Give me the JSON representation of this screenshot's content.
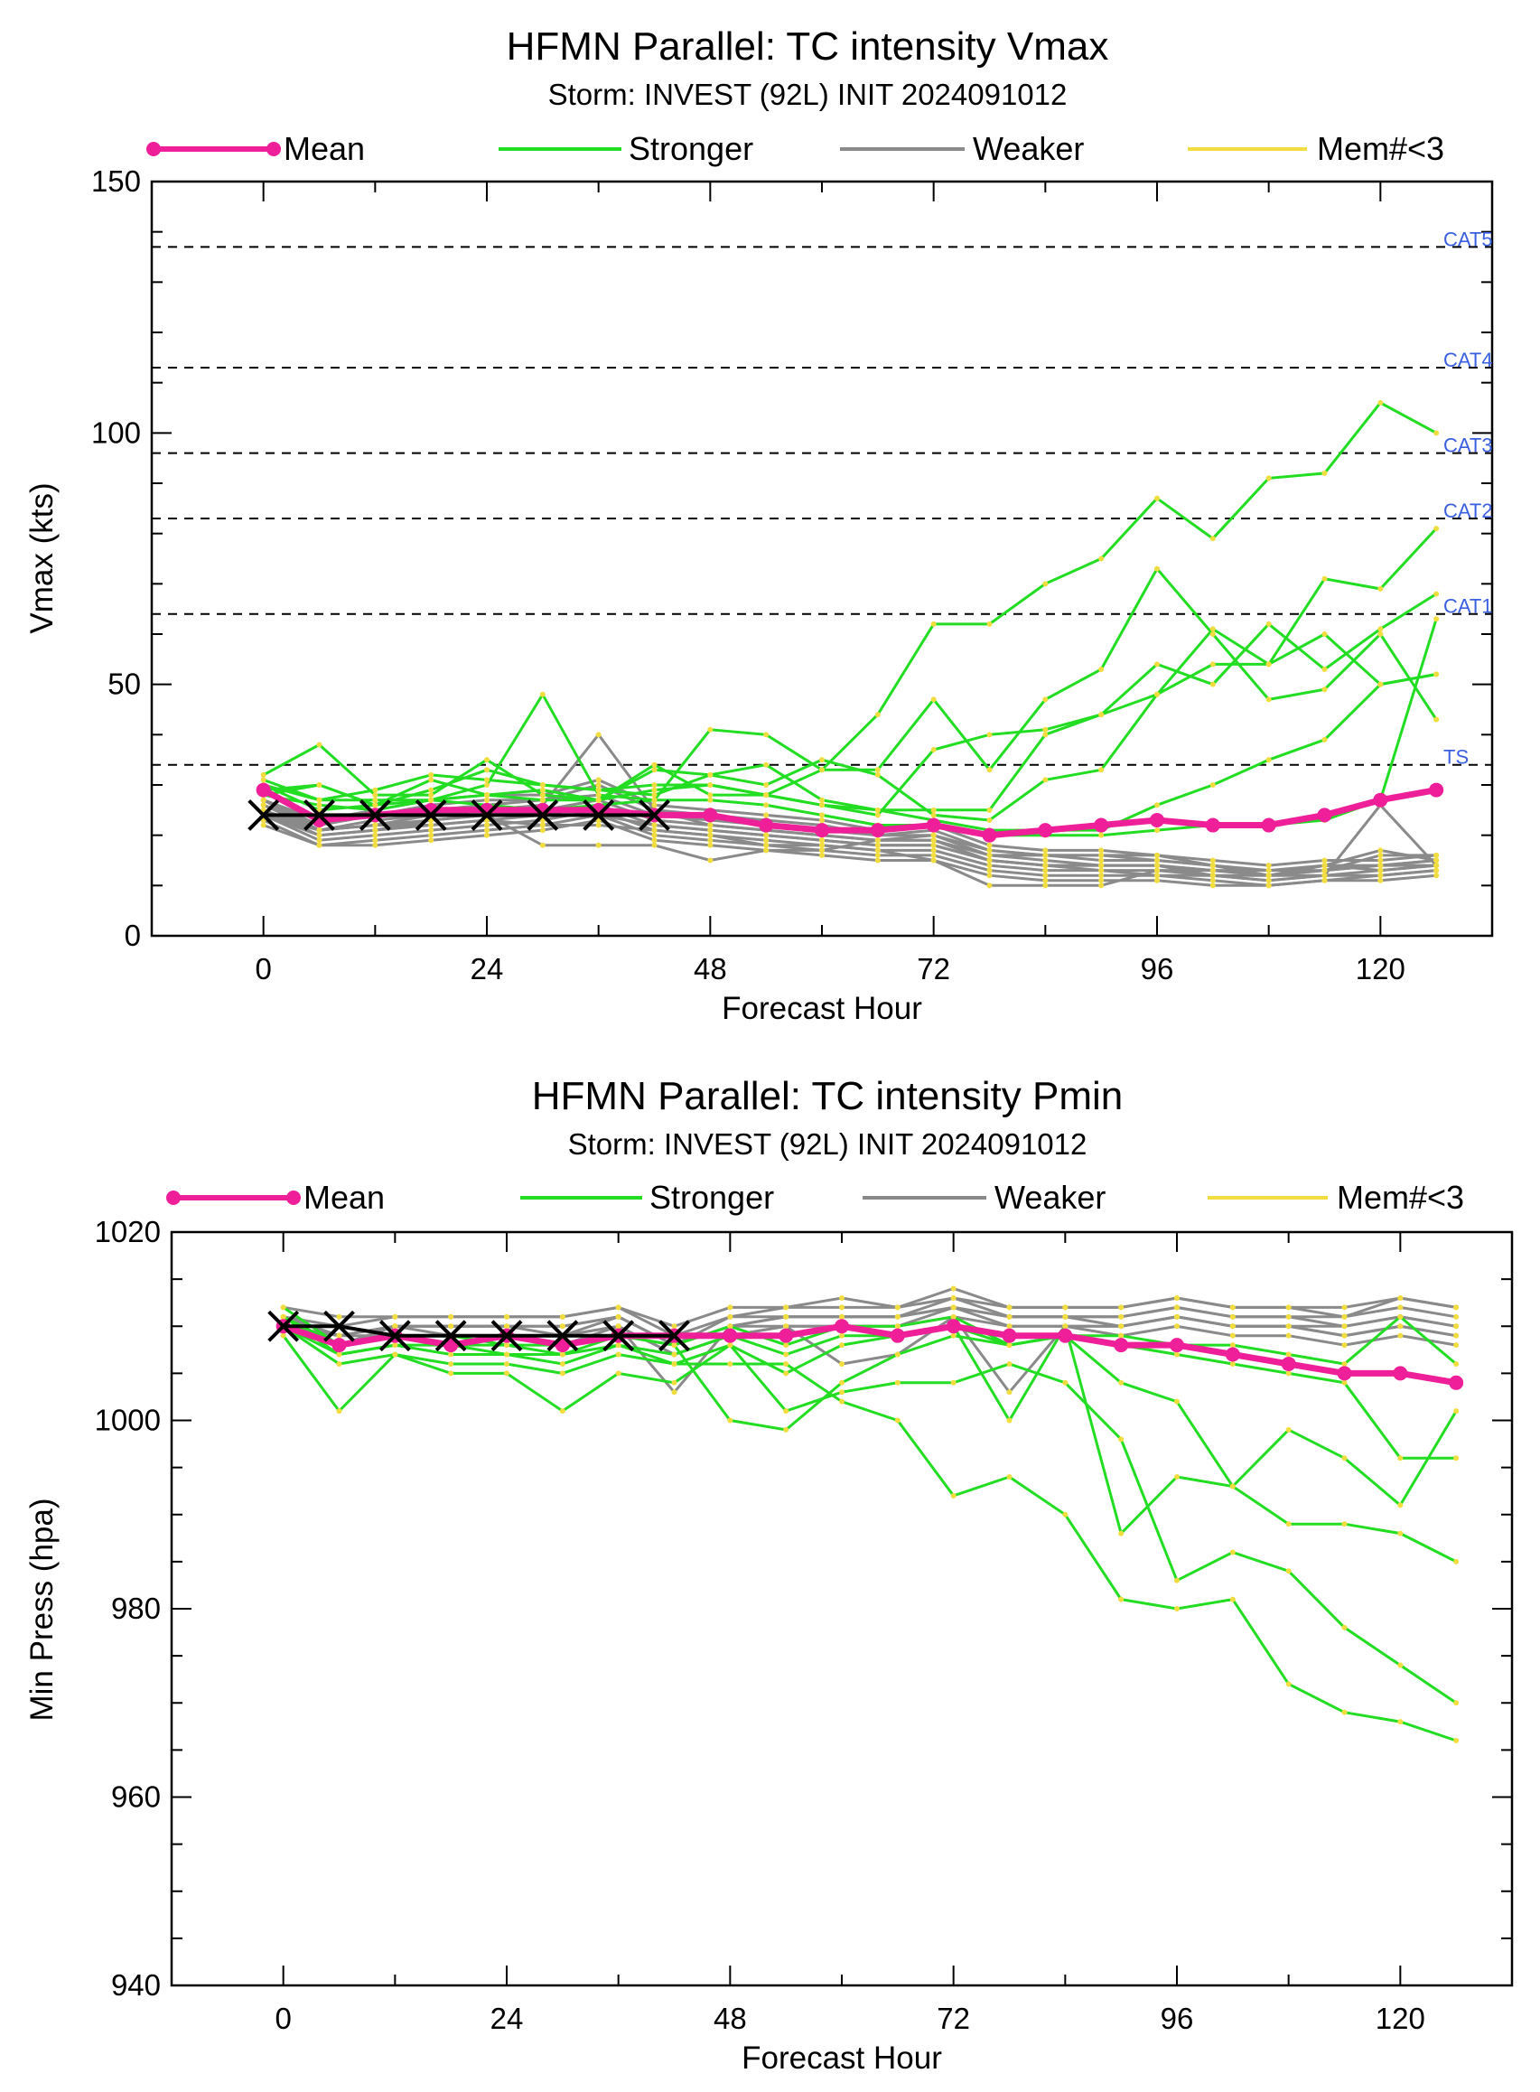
{
  "colors": {
    "mean": "#ee1f98",
    "stronger": "#22dd22",
    "weaker": "#8a8a8a",
    "few_members": "#f2dd40",
    "observed": "#000000",
    "category_label": "#3a5fe0"
  },
  "legend": {
    "mean": "Mean",
    "stronger": "Stronger",
    "weaker": "Weaker",
    "few_members": "Mem#<3"
  },
  "chart_data": [
    {
      "type": "line",
      "title": "HFMN Parallel: TC intensity Vmax",
      "subtitle": "Storm: INVEST (92L) INIT 2024091012",
      "xlabel": "Forecast Hour",
      "ylabel": "Vmax (kts)",
      "xlim": [
        -12,
        132
      ],
      "ylim": [
        0,
        150
      ],
      "xticks": [
        0,
        24,
        48,
        72,
        96,
        120
      ],
      "xtick_labels": [
        "0",
        "24",
        "48",
        "72",
        "96",
        "120"
      ],
      "yticks": [
        0,
        50,
        100,
        150
      ],
      "ytick_labels": [
        "0",
        "50",
        "100",
        "150"
      ],
      "ytick_minor_step": 10,
      "grid": false,
      "legend_position": "top",
      "thresholds": [
        {
          "value": 34,
          "label": "TS"
        },
        {
          "value": 64,
          "label": "CAT1"
        },
        {
          "value": 83,
          "label": "CAT2"
        },
        {
          "value": 96,
          "label": "CAT3"
        },
        {
          "value": 113,
          "label": "CAT4"
        },
        {
          "value": 137,
          "label": "CAT5"
        }
      ],
      "x": [
        0,
        6,
        12,
        18,
        24,
        30,
        36,
        42,
        48,
        54,
        60,
        66,
        72,
        78,
        84,
        90,
        96,
        102,
        108,
        114,
        120,
        126
      ],
      "mean": [
        29,
        23,
        24,
        25,
        25,
        25,
        25,
        24,
        24,
        22,
        21,
        21,
        22,
        20,
        21,
        22,
        23,
        22,
        22,
        24,
        27,
        29
      ],
      "observed": {
        "x": [
          0,
          6,
          12,
          18,
          24,
          30,
          36,
          42
        ],
        "y": [
          24,
          24,
          24,
          24,
          24,
          24,
          24,
          24
        ]
      },
      "stronger": [
        [
          30,
          27,
          29,
          32,
          31,
          30,
          29,
          30,
          30,
          28,
          33,
          44,
          62,
          62,
          70,
          75,
          87,
          79,
          91,
          92,
          106,
          100
        ],
        [
          31,
          27,
          27,
          27,
          30,
          48,
          28,
          27,
          41,
          40,
          33,
          33,
          47,
          33,
          47,
          53,
          73,
          60,
          47,
          49,
          60,
          43
        ],
        [
          32,
          38,
          28,
          28,
          35,
          28,
          27,
          33,
          32,
          34,
          27,
          25,
          25,
          25,
          40,
          44,
          54,
          50,
          62,
          53,
          61,
          68
        ],
        [
          30,
          25,
          26,
          27,
          28,
          29,
          27,
          34,
          28,
          28,
          26,
          24,
          37,
          40,
          41,
          44,
          48,
          61,
          54,
          71,
          69,
          81
        ],
        [
          28,
          30,
          26,
          29,
          33,
          30,
          29,
          28,
          32,
          30,
          35,
          32,
          24,
          23,
          31,
          33,
          48,
          54,
          54,
          60,
          50,
          52
        ],
        [
          29,
          30,
          26,
          31,
          28,
          27,
          27,
          29,
          30,
          28,
          26,
          25,
          23,
          21,
          21,
          21,
          26,
          30,
          35,
          39,
          50,
          52
        ],
        [
          28,
          26,
          25,
          27,
          26,
          25,
          26,
          27,
          27,
          26,
          24,
          22,
          22,
          20,
          20,
          20,
          21,
          22,
          22,
          23,
          27,
          63
        ]
      ],
      "weaker": [
        [
          27,
          22,
          24,
          25,
          26,
          27,
          30,
          25,
          24,
          23,
          22,
          20,
          21,
          17,
          16,
          16,
          15,
          14,
          12,
          14,
          13,
          14
        ],
        [
          26,
          21,
          22,
          23,
          24,
          25,
          27,
          23,
          22,
          21,
          20,
          19,
          19,
          16,
          15,
          14,
          14,
          13,
          12,
          13,
          14,
          15
        ],
        [
          25,
          20,
          21,
          22,
          23,
          24,
          26,
          22,
          21,
          20,
          19,
          18,
          18,
          15,
          14,
          13,
          13,
          12,
          11,
          12,
          13,
          14
        ],
        [
          24,
          19,
          20,
          21,
          22,
          23,
          25,
          21,
          20,
          19,
          18,
          17,
          17,
          14,
          13,
          13,
          12,
          12,
          11,
          12,
          12,
          13
        ],
        [
          23,
          18,
          19,
          20,
          21,
          22,
          24,
          20,
          19,
          18,
          17,
          16,
          16,
          13,
          12,
          12,
          12,
          11,
          10,
          11,
          12,
          13
        ],
        [
          22,
          18,
          18,
          19,
          20,
          21,
          23,
          19,
          18,
          17,
          16,
          15,
          15,
          12,
          11,
          11,
          11,
          10,
          10,
          11,
          11,
          12
        ],
        [
          27,
          23,
          25,
          27,
          28,
          28,
          31,
          26,
          25,
          24,
          23,
          21,
          22,
          18,
          17,
          17,
          16,
          15,
          14,
          15,
          15,
          16
        ],
        [
          26,
          22,
          24,
          26,
          27,
          27,
          28,
          24,
          23,
          22,
          21,
          20,
          20,
          17,
          16,
          15,
          15,
          14,
          13,
          14,
          14,
          15
        ],
        [
          25,
          21,
          22,
          24,
          25,
          26,
          40,
          25,
          22,
          21,
          20,
          19,
          19,
          15,
          14,
          14,
          14,
          13,
          12,
          13,
          14,
          14
        ],
        [
          24,
          20,
          21,
          23,
          24,
          18,
          18,
          18,
          15,
          17,
          17,
          19,
          20,
          16,
          16,
          16,
          16,
          14,
          12,
          14,
          17,
          15
        ],
        [
          24,
          21,
          22,
          22,
          23,
          22,
          22,
          21,
          20,
          18,
          18,
          17,
          15,
          10,
          10,
          10,
          13,
          13,
          13,
          13,
          16,
          16
        ],
        [
          27,
          21,
          23,
          24,
          25,
          24,
          24,
          22,
          21,
          20,
          19,
          18,
          18,
          15,
          14,
          14,
          14,
          12,
          12,
          12,
          26,
          14
        ]
      ]
    },
    {
      "type": "line",
      "title": "HFMN Parallel: TC intensity Pmin",
      "subtitle": "Storm: INVEST (92L) INIT 2024091012",
      "xlabel": "Forecast Hour",
      "ylabel": "Min Press (hpa)",
      "xlim": [
        -12,
        132
      ],
      "ylim": [
        940,
        1020
      ],
      "xticks": [
        0,
        24,
        48,
        72,
        96,
        120
      ],
      "xtick_labels": [
        "0",
        "24",
        "48",
        "72",
        "96",
        "120"
      ],
      "yticks": [
        940,
        960,
        980,
        1000,
        1020
      ],
      "ytick_labels": [
        "940",
        "960",
        "980",
        "1000",
        "1020"
      ],
      "ytick_minor_step": 5,
      "grid": false,
      "legend_position": "top",
      "x": [
        0,
        6,
        12,
        18,
        24,
        30,
        36,
        42,
        48,
        54,
        60,
        66,
        72,
        78,
        84,
        90,
        96,
        102,
        108,
        114,
        120,
        126
      ],
      "mean": [
        1010,
        1008,
        1009,
        1008,
        1009,
        1008,
        1009,
        1009,
        1009,
        1009,
        1010,
        1009,
        1010,
        1009,
        1009,
        1008,
        1008,
        1007,
        1006,
        1005,
        1005,
        1004
      ],
      "observed": {
        "x": [
          0,
          6,
          12,
          18,
          24,
          30,
          36,
          42
        ],
        "y": [
          1010,
          1010,
          1009,
          1009,
          1009,
          1009,
          1009,
          1009
        ]
      },
      "stronger": [
        [
          1010,
          1006,
          1007,
          1006,
          1006,
          1005,
          1007,
          1006,
          1006,
          1006,
          1002,
          1000,
          992,
          994,
          990,
          981,
          980,
          981,
          972,
          969,
          968,
          966
        ],
        [
          1009,
          1001,
          1007,
          1005,
          1005,
          1001,
          1005,
          1004,
          1008,
          1001,
          1003,
          1004,
          1004,
          1006,
          1004,
          998,
          983,
          986,
          984,
          978,
          974,
          970
        ],
        [
          1011,
          1007,
          1008,
          1007,
          1007,
          1006,
          1008,
          1006,
          1008,
          1005,
          1008,
          1009,
          1010,
          1000,
          1010,
          988,
          994,
          993,
          989,
          989,
          988,
          985
        ],
        [
          1012,
          1008,
          1009,
          1008,
          1008,
          1007,
          1009,
          1008,
          1010,
          1008,
          1010,
          1010,
          1011,
          1008,
          1009,
          1004,
          1002,
          993,
          999,
          996,
          991,
          1001
        ],
        [
          1010,
          1007,
          1008,
          1008,
          1007,
          1007,
          1008,
          1007,
          1009,
          1007,
          1009,
          1009,
          1010,
          1008,
          1009,
          1008,
          1007,
          1006,
          1005,
          1004,
          996,
          996
        ],
        [
          1011,
          1008,
          1009,
          1009,
          1008,
          1008,
          1009,
          1008,
          1000,
          999,
          1004,
          1007,
          1009,
          1008,
          1009,
          1009,
          1008,
          1008,
          1007,
          1006,
          1011,
          1006
        ]
      ],
      "weaker": [
        [
          1010,
          1009,
          1010,
          1010,
          1010,
          1010,
          1011,
          1008,
          1010,
          1011,
          1011,
          1011,
          1012,
          1011,
          1011,
          1011,
          1012,
          1011,
          1011,
          1011,
          1012,
          1011
        ],
        [
          1011,
          1010,
          1011,
          1011,
          1011,
          1011,
          1012,
          1009,
          1011,
          1012,
          1012,
          1012,
          1013,
          1012,
          1012,
          1012,
          1013,
          1012,
          1012,
          1012,
          1013,
          1012
        ],
        [
          1012,
          1011,
          1011,
          1011,
          1011,
          1011,
          1012,
          1010,
          1012,
          1012,
          1013,
          1012,
          1014,
          1012,
          1012,
          1012,
          1013,
          1012,
          1012,
          1011,
          1013,
          1012
        ],
        [
          1010,
          1009,
          1009,
          1009,
          1009,
          1009,
          1010,
          1007,
          1009,
          1010,
          1010,
          1010,
          1011,
          1010,
          1010,
          1010,
          1011,
          1010,
          1010,
          1010,
          1011,
          1010
        ],
        [
          1011,
          1009,
          1010,
          1010,
          1010,
          1010,
          1011,
          1008,
          1010,
          1011,
          1011,
          1011,
          1012,
          1011,
          1011,
          1010,
          1011,
          1010,
          1010,
          1009,
          1010,
          1009
        ],
        [
          1010,
          1008,
          1009,
          1009,
          1009,
          1008,
          1010,
          1003,
          1010,
          1010,
          1010,
          1010,
          1012,
          1010,
          1010,
          1009,
          1010,
          1009,
          1009,
          1008,
          1009,
          1008
        ],
        [
          1011,
          1009,
          1010,
          1010,
          1010,
          1009,
          1011,
          1008,
          1011,
          1011,
          1011,
          1011,
          1013,
          1011,
          1011,
          1011,
          1012,
          1011,
          1011,
          1010,
          1011,
          1010
        ],
        [
          1010,
          1008,
          1010,
          1009,
          1009,
          1009,
          1010,
          1007,
          1009,
          1010,
          1006,
          1007,
          1011,
          1003,
          1010,
          1010,
          1011,
          1010,
          1010,
          1009,
          1010,
          1009
        ]
      ]
    }
  ]
}
